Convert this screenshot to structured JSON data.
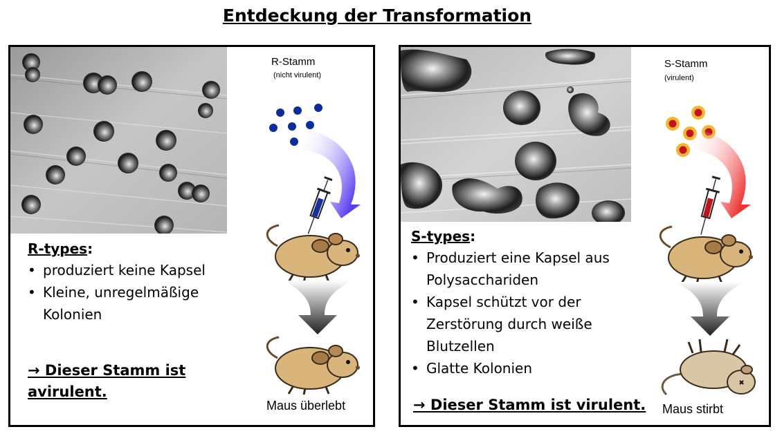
{
  "title": "Entdeckung der Transformation",
  "left": {
    "strain_name": "R-Stamm",
    "strain_note": "(nicht virulent)",
    "heading": "R-types",
    "bullets": [
      "produziert keine Kapsel",
      "Kleine, unregelmäßige Kolonien"
    ],
    "conclusion": "→ Dieser Stamm ist avirulent.",
    "outcome": "Maus überlebt",
    "bacteria_color": "#0b2d9c",
    "arrow_color": "#5a3ff0"
  },
  "right": {
    "strain_name": "S-Stamm",
    "strain_note": "(virulent)",
    "heading": "S-types",
    "bullets": [
      "Produziert eine Kapsel aus Polysacchariden",
      "Kapsel schützt vor der Zerstörung durch weiße Blutzellen",
      "Glatte Kolonien"
    ],
    "conclusion": "→ Dieser Stamm ist virulent.",
    "outcome": "Maus stirbt",
    "bacteria_color": "#c0141a",
    "capsule_color": "#f2b632",
    "arrow_color": "#ee3333"
  }
}
